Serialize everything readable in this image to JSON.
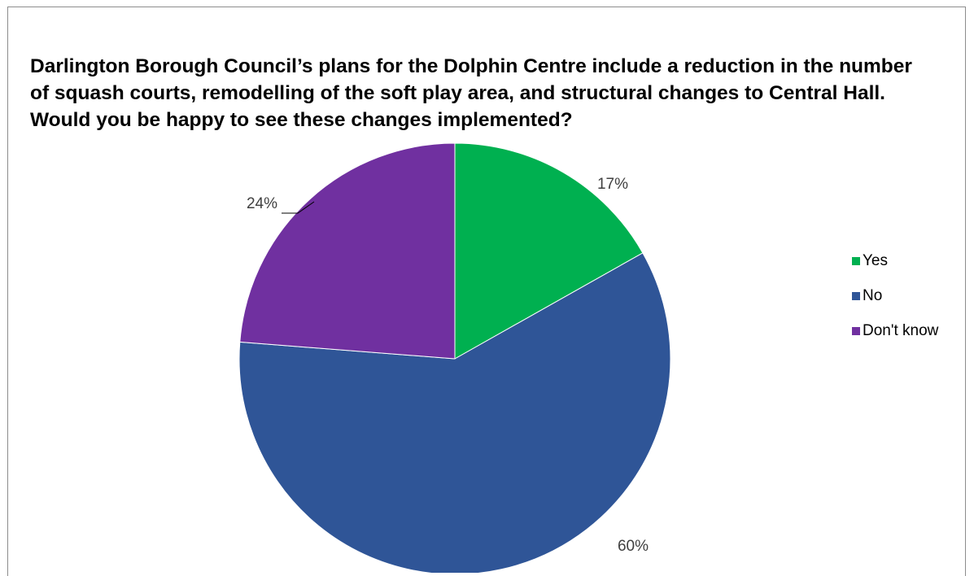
{
  "chart_data": {
    "type": "pie",
    "title": "Darlington Borough Council’s plans for the Dolphin Centre include a reduction in the number of squash courts, remodelling of the soft play area, and structural changes to Central Hall.  Would you be happy to see these changes implemented?",
    "categories": [
      "Yes",
      "No",
      "Don't know"
    ],
    "values": [
      17,
      60,
      24
    ],
    "data_labels": [
      "17%",
      "60%",
      "24%"
    ],
    "colors": [
      "#00b050",
      "#2f5597",
      "#7030a0"
    ],
    "legend_placement": "right"
  }
}
